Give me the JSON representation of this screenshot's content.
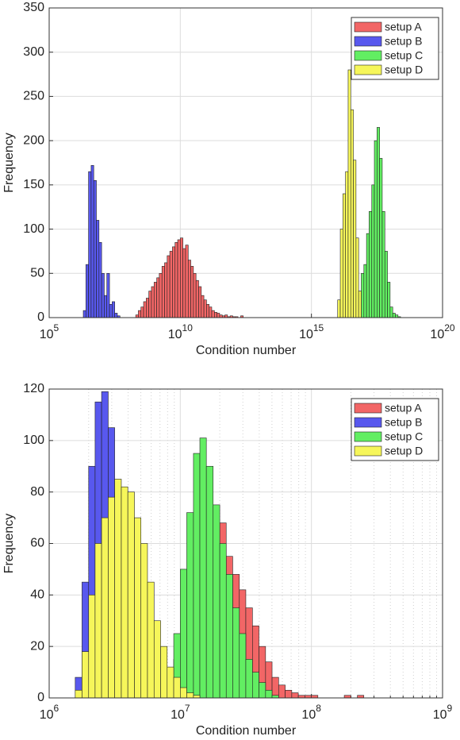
{
  "chart_data": [
    {
      "type": "histogram",
      "xlabel": "Condition number",
      "ylabel": "Frequency",
      "xscale": "log",
      "xlim": [
        100000.0,
        1e+20
      ],
      "xticks": [
        {
          "value": 100000.0,
          "label": "10",
          "exponent": "5"
        },
        {
          "value": 10000000000.0,
          "label": "10",
          "exponent": "10"
        },
        {
          "value": 1000000000000000.0,
          "label": "10",
          "exponent": "15"
        },
        {
          "value": 1e+20,
          "label": "10",
          "exponent": "20"
        }
      ],
      "ylim": [
        0,
        350
      ],
      "yticks": [
        0,
        50,
        100,
        150,
        200,
        250,
        300,
        350
      ],
      "grid": true,
      "legend": "upper right",
      "series": [
        {
          "name": "setup A",
          "color": "#f26666",
          "bins": [
            200000000.0,
            251000000.0,
            316000000.0,
            398000000.0,
            501000000.0,
            631000000.0,
            794000000.0,
            1000000000.0,
            1260000000.0,
            1580000000.0,
            2000000000.0,
            2510000000.0,
            3160000000.0,
            3980000000.0,
            5010000000.0,
            6310000000.0,
            7940000000.0,
            10000000000.0,
            12600000000.0,
            15800000000.0,
            20000000000.0,
            25100000000.0,
            31600000000.0,
            39800000000.0,
            50100000000.0,
            63100000000.0,
            79400000000.0,
            100000000000.0,
            126000000000.0,
            158000000000.0,
            200000000000.0,
            251000000000.0,
            316000000000.0,
            398000000000.0,
            501000000000.0,
            631000000000.0,
            794000000000.0,
            1000000000000.0,
            1260000000000.0,
            1580000000000.0,
            2000000000000.0,
            2510000000000.0
          ],
          "values": [
            3,
            8,
            12,
            18,
            22,
            30,
            35,
            40,
            45,
            50,
            58,
            62,
            70,
            75,
            80,
            85,
            88,
            90,
            78,
            82,
            65,
            58,
            50,
            42,
            35,
            25,
            20,
            15,
            12,
            8,
            6,
            5,
            3,
            2,
            3,
            1,
            2,
            1,
            1,
            0,
            2
          ]
        },
        {
          "name": "setup B",
          "color": "#5858ee",
          "bins": [
            2000000.0,
            2510000.0,
            3160000.0,
            3980000.0,
            5010000.0,
            6310000.0,
            7940000.0,
            10000000.0,
            12600000.0,
            15800000.0,
            20000000.0,
            25100000.0,
            31600000.0,
            39800000.0,
            50100000.0
          ],
          "values": [
            8,
            60,
            165,
            172,
            155,
            110,
            85,
            50,
            25,
            50,
            15,
            18,
            5,
            2
          ]
        },
        {
          "name": "setup C",
          "color": "#62ee62",
          "bins": [
            7.94e+16,
            1e+17,
            1.26e+17,
            1.58e+17,
            2e+17,
            2.51e+17,
            3.16e+17,
            3.98e+17,
            5.01e+17,
            6.31e+17,
            7.94e+17,
            1e+18,
            1.26e+18,
            1.58e+18,
            2e+18,
            2.51e+18
          ],
          "values": [
            50,
            60,
            95,
            120,
            150,
            200,
            215,
            180,
            120,
            75,
            40,
            12,
            5,
            3,
            1
          ]
        },
        {
          "name": "setup D",
          "color": "#f6f65a",
          "bins": [
            1e+16,
            1.26e+16,
            1.58e+16,
            2e+16,
            2.51e+16,
            3.16e+16,
            3.98e+16,
            5.01e+16,
            6.31e+16,
            7.94e+16
          ],
          "values": [
            20,
            100,
            140,
            165,
            280,
            235,
            178,
            90,
            30
          ]
        }
      ]
    },
    {
      "type": "histogram",
      "xlabel": "Condition number",
      "ylabel": "Frequency",
      "xscale": "log",
      "xlim": [
        1000000.0,
        1000000000.0
      ],
      "xticks": [
        {
          "value": 1000000.0,
          "label": "10",
          "exponent": "6"
        },
        {
          "value": 10000000.0,
          "label": "10",
          "exponent": "7"
        },
        {
          "value": 100000000.0,
          "label": "10",
          "exponent": "8"
        },
        {
          "value": 1000000000.0,
          "label": "10",
          "exponent": "9"
        }
      ],
      "xminorticks": [
        2000000.0,
        3000000.0,
        4000000.0,
        5000000.0,
        6000000.0,
        7000000.0,
        8000000.0,
        9000000.0,
        20000000.0,
        30000000.0,
        40000000.0,
        50000000.0,
        60000000.0,
        70000000.0,
        80000000.0,
        90000000.0,
        200000000.0,
        300000000.0,
        400000000.0,
        500000000.0,
        600000000.0,
        700000000.0,
        800000000.0,
        900000000.0
      ],
      "ylim": [
        0,
        120
      ],
      "yticks": [
        0,
        20,
        40,
        60,
        80,
        100,
        120
      ],
      "grid": true,
      "legend": "upper right",
      "series": [
        {
          "name": "setup A",
          "color": "#f26666",
          "bins": [
            8910000.0,
            10000000.0,
            11200000.0,
            12600000.0,
            14100000.0,
            15800000.0,
            17800000.0,
            20000000.0,
            22400000.0,
            25100000.0,
            28200000.0,
            31600000.0,
            35500000.0,
            39800000.0,
            44700000.0,
            50100000.0,
            56200000.0,
            63100000.0,
            70800000.0,
            79400000.0,
            89100000.0,
            100000000.0,
            112000000.0,
            126000000.0,
            141000000.0,
            158000000.0,
            178000000.0,
            200000000.0,
            224000000.0,
            251000000.0
          ],
          "values": [
            15,
            30,
            45,
            55,
            60,
            62,
            65,
            68,
            55,
            48,
            42,
            35,
            28,
            20,
            14,
            8,
            5,
            3,
            2,
            1,
            1,
            1,
            0,
            0,
            0,
            0,
            1,
            0,
            1
          ]
        },
        {
          "name": "setup B",
          "color": "#5858ee",
          "bins": [
            1580000.0,
            1780000.0,
            2000000.0,
            2240000.0,
            2510000.0,
            2820000.0,
            3160000.0,
            3550000.0,
            3980000.0,
            4470000.0,
            5010000.0
          ],
          "values": [
            8,
            45,
            90,
            115,
            119,
            105,
            80,
            40,
            12,
            3
          ]
        },
        {
          "name": "setup C",
          "color": "#62ee62",
          "bins": [
            7080000.0,
            7940000.0,
            8910000.0,
            10000000.0,
            11200000.0,
            12600000.0,
            14100000.0,
            15800000.0,
            17800000.0,
            20000000.0,
            22400000.0,
            25100000.0,
            28200000.0,
            31600000.0,
            35500000.0,
            39800000.0,
            44700000.0,
            50100000.0,
            56200000.0
          ],
          "values": [
            2,
            8,
            25,
            50,
            72,
            95,
            101,
            90,
            75,
            60,
            48,
            35,
            25,
            15,
            10,
            6,
            3,
            1
          ]
        },
        {
          "name": "setup D",
          "color": "#f6f65a",
          "bins": [
            1580000.0,
            1780000.0,
            2000000.0,
            2240000.0,
            2510000.0,
            2820000.0,
            3160000.0,
            3550000.0,
            3980000.0,
            4470000.0,
            5010000.0,
            5620000.0,
            6310000.0,
            7080000.0,
            7940000.0,
            8910000.0,
            10000000.0,
            11200000.0,
            12600000.0,
            14100000.0
          ],
          "values": [
            3,
            18,
            40,
            60,
            70,
            78,
            85,
            82,
            80,
            70,
            60,
            45,
            30,
            20,
            12,
            8,
            4,
            2,
            1
          ]
        }
      ]
    }
  ]
}
